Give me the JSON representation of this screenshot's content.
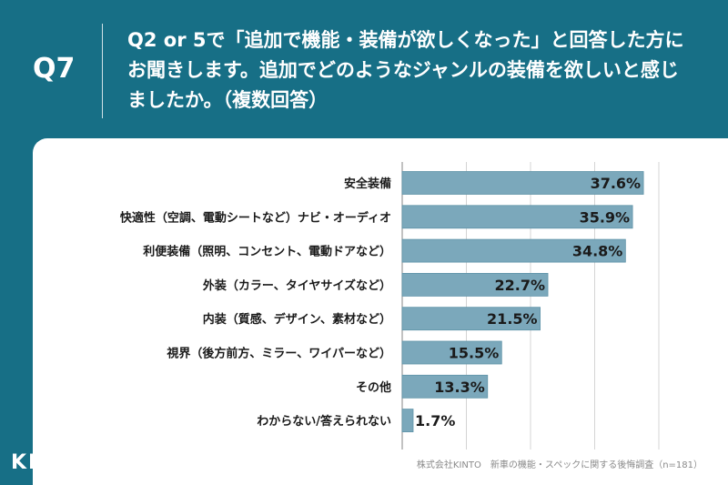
{
  "header": {
    "question_number": "Q7",
    "question_text": "Q2 or 5で「追加で機能・装備が欲しくなった」と回答した方にお聞きします。追加でどのようなジャンルの装備を欲しいと感じましたか。（複数回答）"
  },
  "footer": {
    "source": "株式会社KINTO　新車の機能・スペックに関する後悔調査（n=181）",
    "logo_text": "KINTO"
  },
  "colors": {
    "background": "#176f86",
    "bar": "#7ba8bb",
    "bar_border": "#5f93a8",
    "grid": "#d4d4d4"
  },
  "chart_data": {
    "type": "bar",
    "orientation": "horizontal",
    "categories": [
      "安全装備",
      "快適性（空調、電動シートなど）ナビ・オーディオ",
      "利便装備（照明、コンセント、電動ドアなど）",
      "外装（カラー、タイヤサイズなど）",
      "内装（質感、デザイン、素材など）",
      "視界（後方前方、ミラー、ワイパーなど）",
      "その他",
      "わからない/答えられない"
    ],
    "values": [
      37.6,
      35.9,
      34.8,
      22.7,
      21.5,
      15.5,
      13.3,
      1.7
    ],
    "value_labels": [
      "37.6%",
      "35.9%",
      "34.8%",
      "22.7%",
      "21.5%",
      "15.5%",
      "13.3%",
      "1.7%"
    ],
    "xlim": [
      0,
      40
    ],
    "grid": true
  }
}
